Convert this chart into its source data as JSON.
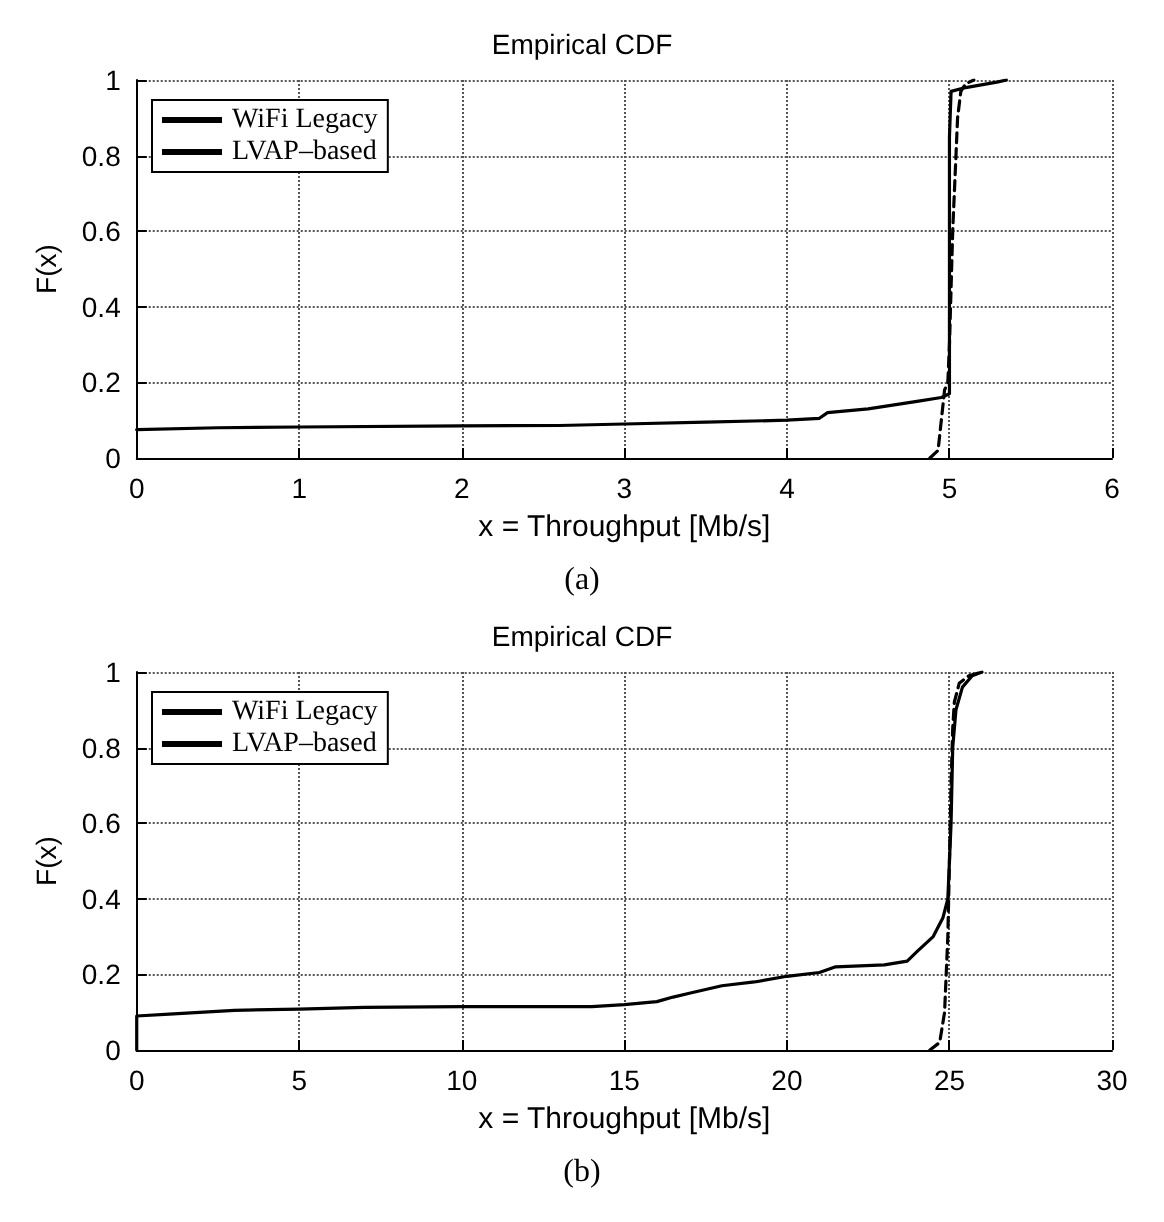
{
  "chart_data": [
    {
      "type": "line",
      "title": "Empirical CDF",
      "xlabel": "x = Throughput [Mb/s]",
      "ylabel": "F(x)",
      "annotations": [
        "(a)"
      ],
      "xlim": [
        0,
        6
      ],
      "xticks": [
        0,
        1,
        2,
        3,
        4,
        5,
        6
      ],
      "ylim": [
        0,
        1
      ],
      "yticks": [
        0,
        0.2,
        0.4,
        0.6,
        0.8,
        1
      ],
      "grid": true,
      "legend": "top left",
      "marker": "none",
      "series": [
        {
          "name": "WiFi Legacy",
          "color": "#000000",
          "line_style": "solid",
          "x": [
            0,
            0.5,
            1,
            2,
            2.6,
            3,
            3.5,
            4,
            4.2,
            4.25,
            4.5,
            4.8,
            4.95,
            5,
            5,
            5.01,
            5.1,
            5.3,
            5.35
          ],
          "values": [
            0.075,
            0.08,
            0.082,
            0.085,
            0.086,
            0.09,
            0.095,
            0.1,
            0.105,
            0.12,
            0.13,
            0.15,
            0.16,
            0.17,
            0.85,
            0.97,
            0.98,
            0.995,
            1
          ]
        },
        {
          "name": "LVAP–based",
          "color": "#000000",
          "line_style": "dashed",
          "x": [
            4.88,
            4.93,
            4.95,
            4.97,
            4.99,
            5,
            5.02,
            5.04,
            5.05,
            5.07,
            5.1,
            5.15
          ],
          "values": [
            0,
            0.02,
            0.1,
            0.18,
            0.2,
            0.3,
            0.6,
            0.8,
            0.9,
            0.97,
            0.99,
            1
          ]
        }
      ]
    },
    {
      "type": "line",
      "title": "Empirical CDF",
      "xlabel": "x = Throughput [Mb/s]",
      "ylabel": "F(x)",
      "annotations": [
        "(b)"
      ],
      "xlim": [
        0,
        30
      ],
      "xticks": [
        0,
        5,
        10,
        15,
        20,
        25,
        30
      ],
      "ylim": [
        0,
        1
      ],
      "yticks": [
        0,
        0.2,
        0.4,
        0.6,
        0.8,
        1
      ],
      "grid": true,
      "legend": "top left",
      "marker": "none",
      "series": [
        {
          "name": "WiFi Legacy",
          "color": "#000000",
          "line_style": "solid",
          "x": [
            0,
            0,
            1,
            3,
            5,
            7,
            10,
            14,
            15,
            16,
            16.5,
            17,
            18,
            19,
            20,
            21,
            21.5,
            23,
            23.7,
            24,
            24.5,
            24.8,
            24.95,
            25.05,
            25.1,
            25.2,
            25.4,
            25.7,
            26
          ],
          "values": [
            0,
            0.09,
            0.095,
            0.105,
            0.108,
            0.113,
            0.115,
            0.115,
            0.12,
            0.128,
            0.14,
            0.15,
            0.17,
            0.18,
            0.195,
            0.205,
            0.22,
            0.225,
            0.235,
            0.26,
            0.3,
            0.35,
            0.4,
            0.6,
            0.8,
            0.9,
            0.96,
            0.99,
            1
          ]
        },
        {
          "name": "LVAP–based",
          "color": "#000000",
          "line_style": "dashed",
          "x": [
            24.4,
            24.7,
            24.85,
            24.95,
            25,
            25.05,
            25.1,
            25.15,
            25.3,
            25.6,
            26
          ],
          "values": [
            0,
            0.02,
            0.1,
            0.3,
            0.5,
            0.7,
            0.85,
            0.92,
            0.97,
            0.99,
            1
          ]
        }
      ]
    }
  ]
}
